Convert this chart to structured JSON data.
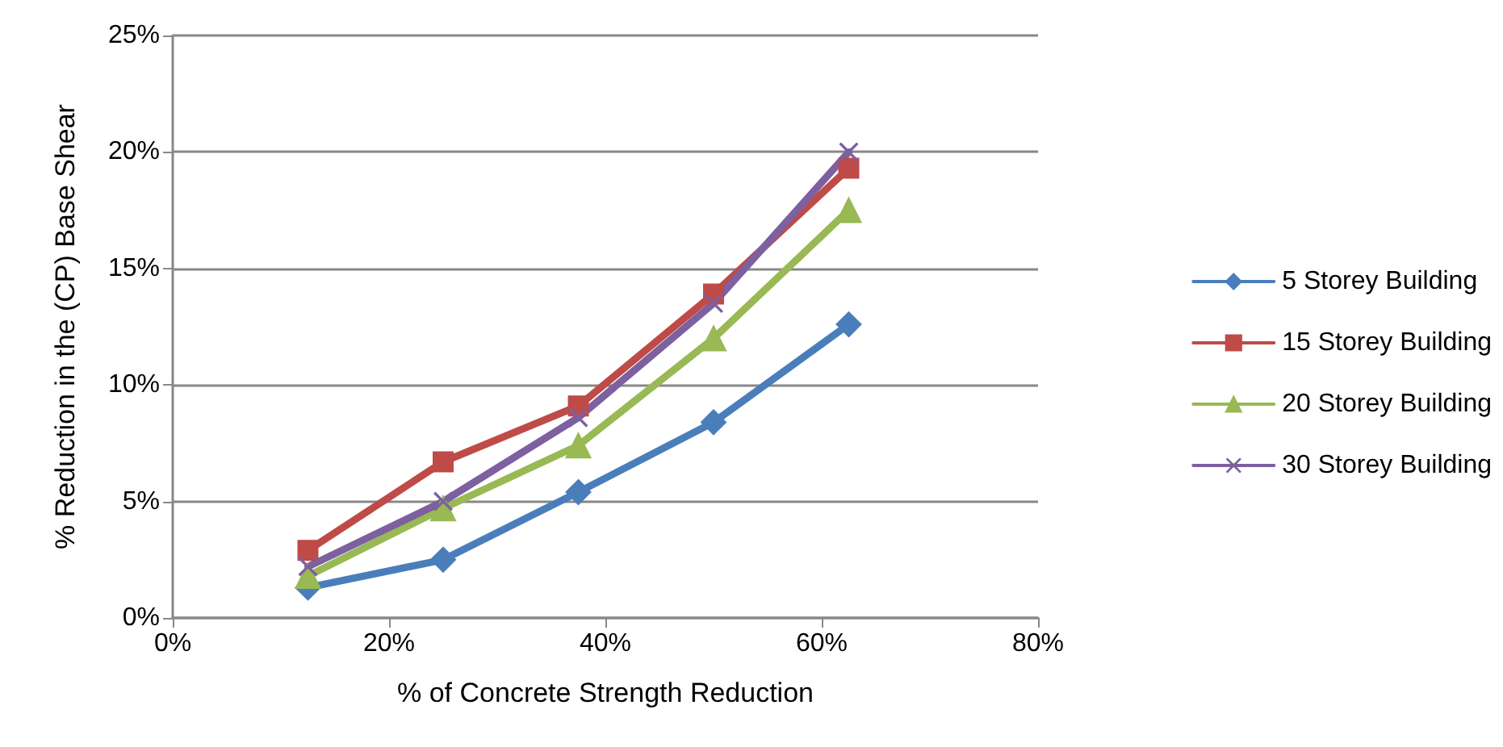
{
  "chart_data": {
    "type": "line",
    "xlabel": "% of Concrete Strength Reduction",
    "ylabel": "% Reduction in the (CP) Base Shear",
    "x": [
      12.5,
      25,
      37.5,
      50,
      62.5
    ],
    "series": [
      {
        "name": "5 Storey Building",
        "color": "#4a7ebb",
        "marker": "diamond",
        "values": [
          1.3,
          2.5,
          5.4,
          8.4,
          12.6
        ]
      },
      {
        "name": "15 Storey Building",
        "color": "#be4b48",
        "marker": "square",
        "values": [
          2.9,
          6.7,
          9.1,
          13.9,
          19.3
        ]
      },
      {
        "name": "20 Storey Building",
        "color": "#98b954",
        "marker": "triangle",
        "values": [
          1.8,
          4.7,
          7.4,
          12.0,
          17.5
        ]
      },
      {
        "name": "30 Storey Building",
        "color": "#7d60a0",
        "marker": "cross",
        "values": [
          2.2,
          5.0,
          8.6,
          13.5,
          20.0
        ]
      }
    ],
    "xlim": [
      0,
      80
    ],
    "xticks": [
      {
        "value": 0,
        "label": "0%"
      },
      {
        "value": 20,
        "label": "20%"
      },
      {
        "value": 40,
        "label": "40%"
      },
      {
        "value": 60,
        "label": "60%"
      },
      {
        "value": 80,
        "label": "80%"
      }
    ],
    "ylim": [
      0,
      25
    ],
    "yticks": [
      {
        "value": 0,
        "label": "0%"
      },
      {
        "value": 5,
        "label": "5%"
      },
      {
        "value": 10,
        "label": "10%"
      },
      {
        "value": 15,
        "label": "15%"
      },
      {
        "value": 20,
        "label": "20%"
      },
      {
        "value": 25,
        "label": "25%"
      }
    ],
    "grid": "y",
    "legend": "right",
    "line_style": "solid"
  }
}
